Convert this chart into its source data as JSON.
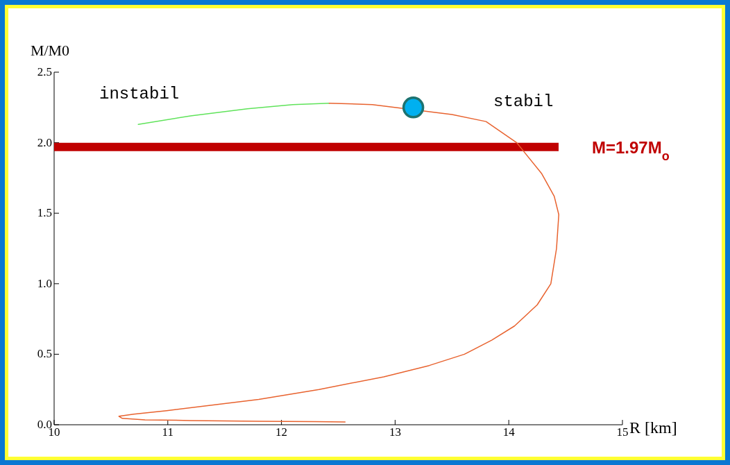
{
  "chart_data": {
    "type": "line",
    "xlabel": "R [km]",
    "ylabel": "M/M0",
    "xlim": [
      10,
      15
    ],
    "xticks": [
      10,
      11,
      12,
      13,
      14,
      15
    ],
    "ylim": [
      0,
      2.5
    ],
    "yticks": [
      {
        "value": 0,
        "label": "0.0"
      },
      {
        "value": 0.5,
        "label": "0.5"
      },
      {
        "value": 1,
        "label": "1.0"
      },
      {
        "value": 1.5,
        "label": "1.5"
      },
      {
        "value": 2,
        "label": "2.0"
      },
      {
        "value": 2.5,
        "label": "2.5"
      }
    ],
    "grid": false,
    "series": [
      {
        "color": "#5fe35a",
        "x": [
          10.74,
          11.2,
          11.7,
          12.1,
          12.42
        ],
        "values": [
          2.13,
          2.19,
          2.24,
          2.27,
          2.28
        ]
      },
      {
        "color": "#e8622e",
        "x": [
          12.42,
          12.8,
          13.5,
          13.8,
          14.07,
          14.29,
          14.4,
          14.44,
          14.42,
          14.37,
          14.25,
          14.05,
          13.85,
          13.61,
          13.3,
          12.9,
          12.33,
          11.8,
          11.4,
          10.99,
          10.7,
          10.57,
          10.6,
          10.8,
          11.2,
          11.8,
          12.3,
          12.56
        ],
        "values": [
          2.28,
          2.27,
          2.2,
          2.15,
          2.0,
          1.78,
          1.62,
          1.49,
          1.25,
          1.0,
          0.85,
          0.7,
          0.6,
          0.5,
          0.42,
          0.34,
          0.25,
          0.18,
          0.14,
          0.1,
          0.075,
          0.06,
          0.045,
          0.035,
          0.03,
          0.025,
          0.022,
          0.02
        ]
      },
      {
        "type": "scatter",
        "color": "#00b0f0",
        "x": [
          13.16
        ],
        "values": [
          2.25
        ],
        "marker": "circle"
      }
    ],
    "ref_lines": [
      {
        "axis": "y",
        "value": 1.97,
        "label": "M=1.97M$_{o}$",
        "color": "#c00000"
      }
    ],
    "annotations": [
      "instabil",
      "stabil"
    ]
  }
}
